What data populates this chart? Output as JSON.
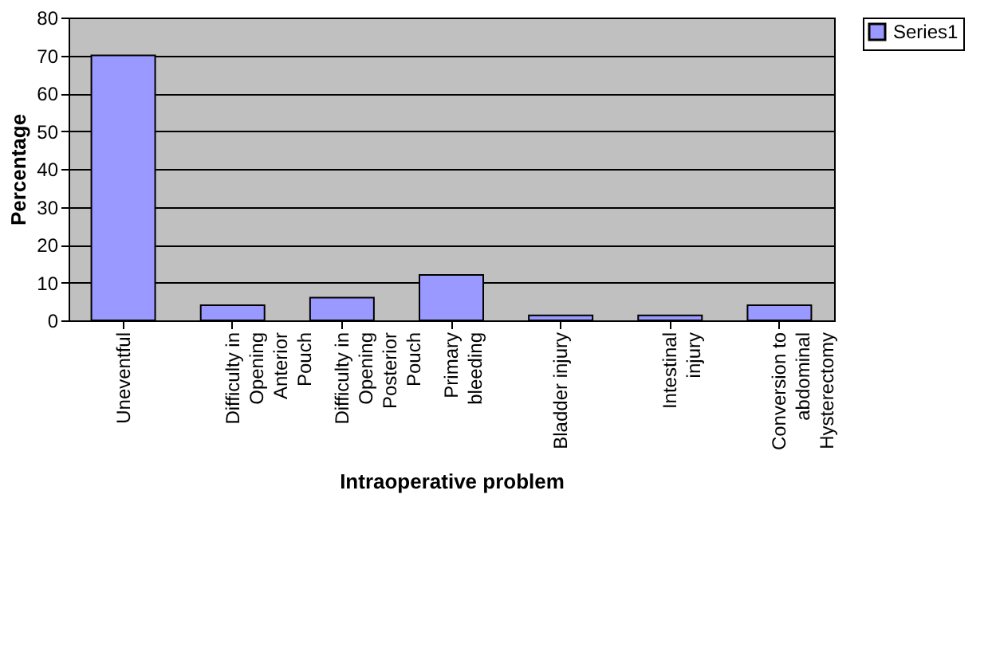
{
  "chart_data": {
    "type": "bar",
    "xlabel": "Intraoperative problem",
    "ylabel": "Percentage",
    "categories": [
      "Uneventful",
      "Difficulty in\nOpening\nAnterior\nPouch",
      "Difficulty in\nOpening\nPosterior\nPouch",
      "Primary\nbleeding",
      "Bladder injury",
      "Intestinal\ninjury",
      "Conversion to\nabdominal\nHysterectomy"
    ],
    "series": [
      {
        "name": "Series1",
        "color": "#9999ff",
        "values": [
          70,
          4,
          6,
          12,
          1.3,
          1.3,
          4
        ]
      }
    ],
    "ylim": [
      0,
      80
    ],
    "yticks": [
      0,
      10,
      20,
      30,
      40,
      50,
      60,
      70,
      80
    ],
    "grid": "y",
    "legend": "right"
  }
}
